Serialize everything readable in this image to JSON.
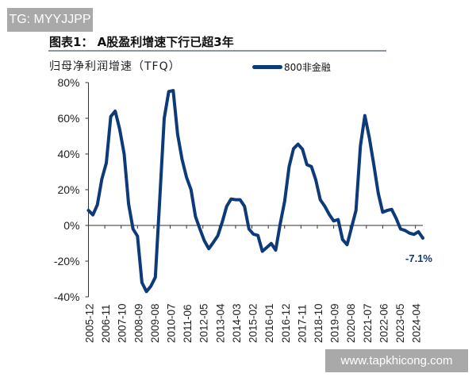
{
  "badge": "TG: MYYJJPP",
  "watermark": "www.tapkhicong.com",
  "chart_data": {
    "type": "line",
    "title": "图表1： A股盈利增速下行已超3年",
    "subtitle": "归母净利润增速（TFQ）",
    "xlabel": "",
    "ylabel": "",
    "ylim": [
      -40,
      80
    ],
    "y_ticks": [
      "80%",
      "60%",
      "40%",
      "20%",
      "0%",
      "-20%",
      "-40%"
    ],
    "y_tick_values": [
      80,
      60,
      40,
      20,
      0,
      -20,
      -40
    ],
    "x_tick_labels": [
      "2005-12",
      "2006-11",
      "2007-10",
      "2008-09",
      "2009-08",
      "2010-07",
      "2011-06",
      "2012-05",
      "2013-04",
      "2014-03",
      "2015-02",
      "2016-01",
      "2016-12",
      "2017-11",
      "2018-10",
      "2019-09",
      "2020-08",
      "2021-07",
      "2022-06",
      "2023-05",
      "2024-04"
    ],
    "x_start": "2005-12",
    "x_end": "2024-09",
    "x_frequency": "quarterly",
    "grid": false,
    "legend_position": "top-right",
    "series": [
      {
        "name": "800非金融",
        "color": "#0d3a78",
        "values": [
          8.4,
          5.9,
          11.5,
          26,
          35,
          61,
          64,
          54,
          40,
          12,
          -2,
          -6,
          -32,
          -37,
          -34,
          -29,
          15,
          60,
          75,
          75.5,
          51,
          37,
          27,
          20,
          5,
          -2,
          -8.6,
          -13,
          -9.5,
          -5.8,
          1.8,
          10.7,
          14.8,
          14.4,
          14.4,
          10.7,
          -2,
          -4.9,
          -5.6,
          -14.5,
          -12.3,
          -10.1,
          -13.8,
          0.9,
          13.5,
          32.9,
          43,
          45.5,
          42.6,
          34,
          33,
          25.4,
          14.4,
          10.7,
          6.2,
          2.5,
          3.3,
          -7.9,
          -10.8,
          -1.2,
          8.4,
          44.5,
          61.5,
          49,
          34,
          18,
          7.4,
          8.4,
          9,
          4,
          -2,
          -2.8,
          -4.3,
          -5,
          -3.5,
          -7.1
        ]
      }
    ],
    "annotations": [
      {
        "text": "-7.1%",
        "x": "2024-09",
        "y": -7.1
      }
    ]
  }
}
